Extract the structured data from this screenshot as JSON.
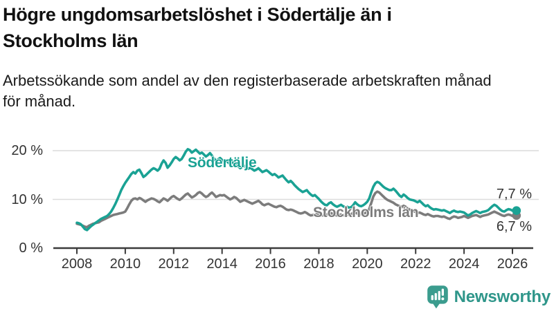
{
  "header": {
    "title_lines": [
      "Högre ungdomsarbetslöshet i Södertälje än i",
      "Stockholms län"
    ],
    "subtitle_lines": [
      "Arbetssökande som andel av den registerbaserade arbetskraften månad",
      "för månad."
    ]
  },
  "chart_data": {
    "type": "line",
    "title": "Högre ungdomsarbetslöshet i Södertälje än i Stockholms län",
    "subtitle": "Arbetssökande som andel av den registerbaserade arbetskraften månad för månad.",
    "x_unit": "month",
    "x_start": "2008-01",
    "x_end": "2026-03",
    "x_tick_labels": [
      "2008",
      "2010",
      "2012",
      "2014",
      "2016",
      "2018",
      "2020",
      "2022",
      "2024",
      "2026"
    ],
    "y_ticks": [
      0,
      10,
      20
    ],
    "y_tick_labels": [
      "0 %",
      "10 %",
      "20 %"
    ],
    "ylim": [
      0,
      22
    ],
    "grid": "horizontal",
    "unit": "%",
    "legend_position": "inline-labels",
    "series": [
      {
        "name": "Södertälje",
        "color": "#1aa294",
        "end_label": "7,7 %",
        "final_value": 7.7,
        "values": [
          5.2,
          5.1,
          4.9,
          4.4,
          3.9,
          3.7,
          4.1,
          4.5,
          4.8,
          5.1,
          5.4,
          5.7,
          6.0,
          6.2,
          6.4,
          6.6,
          7.0,
          7.5,
          8.2,
          9.0,
          9.9,
          10.9,
          11.9,
          12.7,
          13.4,
          14.0,
          14.6,
          15.2,
          15.6,
          15.3,
          15.9,
          16.1,
          15.4,
          14.6,
          14.9,
          15.3,
          15.7,
          16.1,
          16.4,
          16.2,
          15.9,
          16.3,
          17.3,
          18.0,
          17.5,
          16.5,
          17.0,
          17.6,
          18.3,
          18.7,
          18.4,
          18.0,
          18.3,
          19.0,
          19.8,
          20.3,
          20.1,
          19.6,
          19.9,
          20.2,
          19.8,
          19.4,
          19.6,
          19.2,
          18.8,
          19.1,
          19.5,
          19.0,
          18.4,
          17.9,
          18.2,
          18.5,
          18.1,
          17.8,
          18.0,
          17.6,
          17.2,
          17.5,
          17.8,
          17.3,
          16.8,
          16.4,
          16.7,
          16.9,
          16.6,
          16.3,
          16.5,
          16.2,
          15.9,
          16.1,
          16.4,
          16.0,
          15.6,
          15.8,
          16.0,
          15.7,
          15.3,
          15.0,
          15.2,
          14.9,
          14.5,
          14.7,
          14.9,
          14.4,
          13.9,
          13.5,
          13.8,
          13.4,
          12.9,
          12.5,
          12.1,
          11.8,
          11.5,
          11.7,
          11.9,
          11.4,
          11.0,
          10.7,
          10.9,
          10.5,
          10.1,
          9.6,
          9.2,
          8.9,
          8.8,
          9.2,
          9.4,
          9.0,
          8.7,
          8.5,
          8.7,
          8.9,
          8.6,
          8.4,
          8.5,
          8.3,
          8.4,
          8.8,
          9.4,
          9.0,
          8.7,
          8.6,
          8.8,
          9.1,
          9.5,
          10.2,
          11.5,
          12.6,
          13.3,
          13.6,
          13.4,
          13.0,
          12.6,
          12.3,
          12.1,
          11.9,
          11.9,
          12.2,
          11.8,
          11.3,
          10.8,
          10.5,
          11.0,
          10.7,
          10.3,
          10.0,
          9.9,
          9.8,
          9.6,
          9.4,
          9.7,
          9.3,
          8.9,
          8.6,
          8.8,
          8.4,
          8.1,
          7.9,
          8.0,
          7.9,
          7.8,
          7.7,
          7.8,
          7.6,
          7.4,
          7.2,
          7.5,
          7.7,
          7.5,
          7.4,
          7.5,
          7.4,
          7.3,
          7.0,
          6.7,
          6.9,
          7.2,
          7.4,
          7.6,
          7.4,
          7.2,
          7.4,
          7.5,
          7.6,
          7.8,
          8.2,
          8.6,
          8.9,
          8.7,
          8.3,
          7.9,
          7.6,
          7.5,
          7.8,
          8.0,
          7.9,
          7.7,
          7.5,
          7.7
        ]
      },
      {
        "name": "Stockholms län",
        "color": "#7c7c7c",
        "end_label": "6,7 %",
        "final_value": 6.7,
        "values": [
          5.0,
          4.9,
          4.8,
          4.6,
          4.4,
          4.3,
          4.6,
          4.8,
          5.0,
          5.1,
          5.2,
          5.3,
          5.6,
          5.8,
          6.0,
          6.2,
          6.4,
          6.6,
          6.8,
          6.9,
          7.0,
          7.1,
          7.2,
          7.3,
          7.5,
          8.2,
          9.0,
          9.7,
          10.1,
          10.2,
          10.0,
          10.3,
          10.1,
          9.8,
          9.5,
          9.8,
          10.0,
          10.2,
          10.1,
          9.9,
          9.6,
          9.4,
          9.8,
          10.2,
          10.0,
          9.7,
          10.1,
          10.5,
          10.7,
          10.4,
          10.1,
          9.9,
          10.2,
          10.6,
          11.0,
          11.2,
          10.8,
          10.4,
          10.6,
          10.9,
          11.3,
          11.5,
          11.2,
          10.8,
          10.5,
          10.7,
          11.1,
          11.4,
          11.0,
          10.5,
          10.7,
          10.9,
          10.8,
          10.9,
          10.6,
          10.3,
          10.0,
          10.2,
          10.5,
          10.3,
          9.9,
          9.5,
          9.7,
          9.9,
          9.7,
          9.5,
          9.3,
          9.1,
          9.3,
          9.5,
          9.7,
          9.4,
          9.0,
          8.8,
          9.0,
          9.1,
          8.9,
          8.7,
          8.5,
          8.4,
          8.6,
          8.7,
          8.5,
          8.2,
          7.9,
          7.8,
          7.9,
          7.8,
          7.6,
          7.4,
          7.2,
          7.1,
          7.2,
          7.4,
          7.2,
          6.9,
          6.7,
          6.8,
          6.9,
          7.0,
          6.9,
          6.8,
          6.7,
          6.8,
          6.9,
          7.1,
          7.2,
          7.0,
          6.8,
          6.7,
          6.8,
          6.9,
          6.8,
          6.7,
          6.8,
          6.9,
          7.0,
          7.2,
          7.3,
          7.1,
          6.9,
          7.0,
          7.1,
          7.2,
          7.4,
          8.0,
          9.3,
          10.6,
          11.3,
          11.6,
          11.4,
          11.0,
          10.6,
          10.2,
          9.9,
          9.7,
          9.5,
          9.3,
          9.0,
          8.8,
          8.6,
          8.4,
          8.7,
          8.5,
          8.2,
          7.9,
          7.7,
          7.6,
          7.4,
          7.2,
          7.3,
          7.1,
          6.9,
          6.8,
          7.0,
          6.8,
          6.6,
          6.5,
          6.6,
          6.6,
          6.5,
          6.4,
          6.5,
          6.3,
          6.1,
          6.0,
          6.3,
          6.5,
          6.4,
          6.2,
          6.3,
          6.4,
          6.6,
          6.4,
          6.2,
          6.4,
          6.6,
          6.7,
          6.8,
          6.6,
          6.4,
          6.6,
          6.7,
          6.8,
          6.9,
          7.1,
          7.3,
          7.5,
          7.3,
          7.1,
          6.9,
          6.7,
          6.6,
          6.8,
          6.9,
          6.8,
          6.6,
          6.5,
          6.7
        ]
      }
    ]
  },
  "branding": {
    "logo_text": "Newsworthy",
    "logo_icon": "bar-chart-bubble-icon",
    "logo_color": "#3b9c8e",
    "text_color": "#2f968a"
  },
  "colors": {
    "sodertalje_line": "#1aa294",
    "stockholm_line": "#7c7c7c",
    "gridline": "#dcdcdc",
    "axis": "#3a3a3a",
    "text": "#1a1a1a"
  }
}
